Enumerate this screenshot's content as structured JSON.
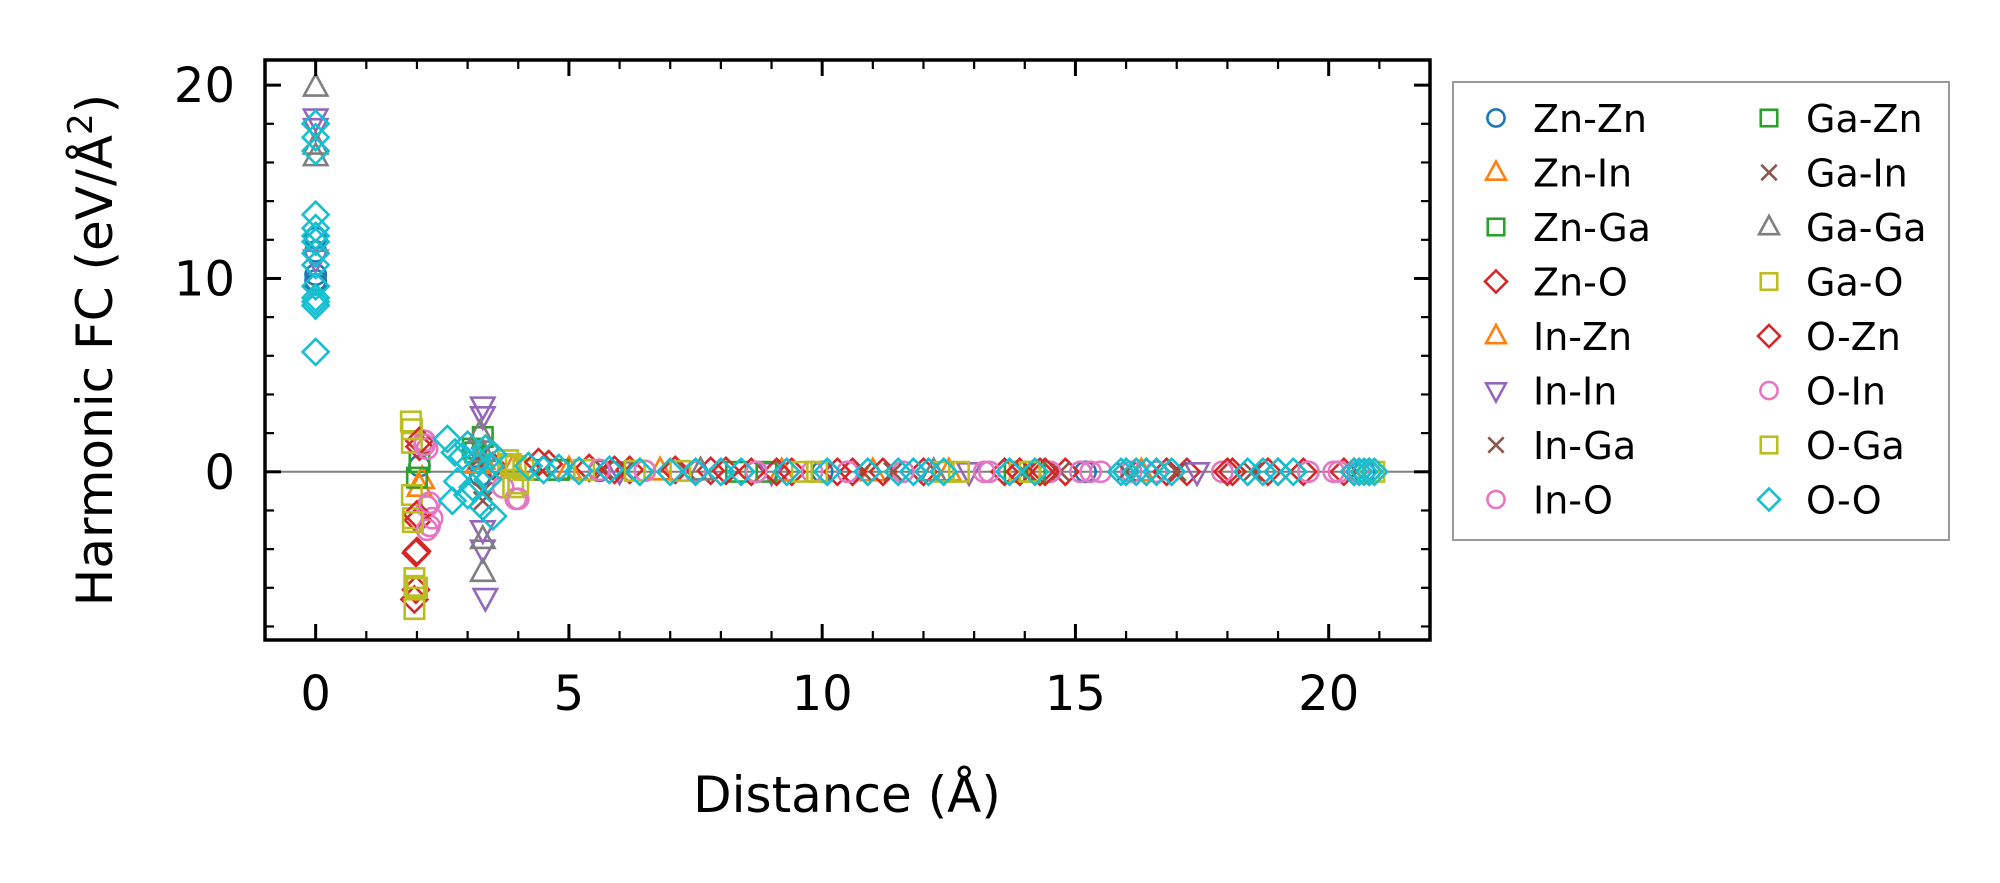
{
  "chart_data": {
    "type": "scatter",
    "title": "",
    "xlabel": "Distance (Å)",
    "ylabel": "Harmonic FC (eV/Å²)",
    "ylabel_base": "Harmonic FC (eV/Å",
    "ylabel_sup": "2",
    "ylabel_close": ")",
    "xlim": [
      -1,
      22
    ],
    "ylim": [
      -8.7,
      21.3
    ],
    "xticks": [
      0,
      5,
      10,
      15,
      20
    ],
    "yticks": [
      0,
      10,
      20
    ],
    "xtick_labels": [
      "0",
      "5",
      "10",
      "15",
      "20"
    ],
    "ytick_labels": [
      "0",
      "10",
      "20"
    ],
    "grid": false,
    "zero_line": true,
    "legend": "outside-right",
    "series": [
      {
        "name": "Zn-Zn",
        "marker": "circle",
        "color": "#1f77b4",
        "x": [
          0,
          0,
          0,
          0,
          0,
          2.05,
          3.25,
          5.6,
          10.0,
          15.2,
          20.7
        ],
        "y": [
          9.7,
          10.2,
          9.9,
          12.1,
          11.4,
          0.3,
          -0.2,
          0.05,
          0.0,
          0.0,
          0.0
        ]
      },
      {
        "name": "Zn-In",
        "marker": "triangle-up",
        "color": "#ff7f0e",
        "x": [
          2.05,
          3.3,
          3.9,
          6.8,
          11.0,
          16.3
        ],
        "y": [
          -0.8,
          0.6,
          0.2,
          0.05,
          0.0,
          0.0
        ]
      },
      {
        "name": "Zn-Ga",
        "marker": "square",
        "color": "#2ca02c",
        "x": [
          2.05,
          3.1,
          3.3,
          4.2,
          8.3,
          13.8
        ],
        "y": [
          0.5,
          1.2,
          1.8,
          0.1,
          0.0,
          0.0
        ]
      },
      {
        "name": "Zn-O",
        "marker": "diamond",
        "color": "#d62728",
        "x": [
          1.95,
          1.98,
          2.0,
          2.02,
          2.05,
          3.5,
          4.6,
          5.4,
          6.2,
          7.1,
          7.8,
          8.6,
          9.4,
          10.3,
          11.2,
          12.0,
          13.6,
          14.3,
          14.8,
          16.8,
          17.2,
          18.1,
          18.8,
          19.5,
          20.3,
          20.8
        ],
        "y": [
          -6.6,
          -6.1,
          -4.1,
          -2.5,
          1.3,
          0.3,
          0.4,
          0.2,
          0.1,
          0.1,
          0.05,
          0.0,
          0.0,
          0.0,
          0.0,
          0.0,
          0.0,
          0.0,
          0.0,
          0.0,
          0.0,
          0.0,
          0.0,
          0.0,
          0.0,
          0.0
        ]
      },
      {
        "name": "In-Zn",
        "marker": "triangle-up",
        "color": "#ff7f0e",
        "x": [
          2.1,
          3.2,
          5.0,
          9.2,
          12.5
        ],
        "y": [
          -0.4,
          0.4,
          0.1,
          0.0,
          0.0
        ]
      },
      {
        "name": "In-In",
        "marker": "triangle-down",
        "color": "#9467bd",
        "x": [
          0,
          0,
          0,
          3.3,
          3.3,
          3.3,
          3.3,
          3.35,
          6.0,
          9.0,
          12.9,
          17.4
        ],
        "y": [
          17.8,
          18.3,
          11.0,
          3.4,
          2.9,
          -3.0,
          -4.0,
          -6.5,
          0.05,
          0.0,
          0.0,
          0.0
        ]
      },
      {
        "name": "In-Ga",
        "marker": "x",
        "color": "#8c564b",
        "x": [
          3.25,
          3.3,
          5.7,
          7.3,
          10.8,
          14.0,
          14.7,
          17.0,
          18.5
        ],
        "y": [
          0.8,
          -1.0,
          0.1,
          0.1,
          0.0,
          0.0,
          0.0,
          0.0,
          0.0
        ]
      },
      {
        "name": "In-O",
        "marker": "circle",
        "color": "#e377c2",
        "x": [
          2.15,
          2.2,
          2.2,
          2.25,
          2.3,
          3.7,
          3.95,
          6.5,
          7.5,
          9.8,
          11.6,
          13.2,
          14.5,
          15.1,
          15.5,
          16.1,
          16.6,
          17.9,
          19.6,
          20.1,
          20.6
        ],
        "y": [
          1.6,
          1.2,
          -1.8,
          -2.8,
          -2.4,
          -0.8,
          -1.4,
          0.05,
          0.0,
          0.0,
          0.0,
          0.0,
          0.0,
          0.0,
          0.0,
          0.0,
          0.0,
          0.0,
          0.0,
          0.0,
          0.0
        ]
      },
      {
        "name": "Ga-Zn",
        "marker": "square",
        "color": "#2ca02c",
        "x": [
          2.0,
          3.15,
          4.8,
          8.9,
          14.2
        ],
        "y": [
          -0.3,
          1.0,
          0.1,
          0.0,
          0.0
        ]
      },
      {
        "name": "Ga-In",
        "marker": "x",
        "color": "#8c564b",
        "x": [
          3.2,
          3.3,
          6.1,
          11.4,
          16.0
        ],
        "y": [
          0.6,
          -1.5,
          0.05,
          0.0,
          0.0
        ]
      },
      {
        "name": "Ga-Ga",
        "marker": "triangle-up",
        "color": "#7f7f7f",
        "x": [
          0,
          0,
          0,
          3.25,
          3.3,
          3.3,
          3.3,
          7.6,
          12.2
        ],
        "y": [
          19.9,
          16.3,
          16.9,
          2.0,
          1.0,
          -3.5,
          -5.2,
          0.05,
          0.0
        ]
      },
      {
        "name": "Ga-O",
        "marker": "square",
        "color": "#bcbd22",
        "x": [
          1.88,
          1.9,
          1.9,
          1.92,
          1.95,
          1.95,
          2.0,
          3.8,
          3.9,
          3.95,
          4.1,
          5.3,
          7.2,
          9.6,
          12.4,
          13.9,
          20.8
        ],
        "y": [
          2.6,
          1.5,
          -1.2,
          -2.4,
          -5.9,
          -7.1,
          -6.0,
          0.6,
          -0.8,
          0.3,
          0.1,
          0.1,
          0.05,
          0.0,
          0.0,
          0.0,
          0.0
        ]
      },
      {
        "name": "O-Zn",
        "marker": "diamond",
        "color": "#d62728",
        "x": [
          1.98,
          2.0,
          2.05,
          4.4,
          5.9,
          8.1,
          9.1,
          10.6,
          13.9,
          14.4,
          16.4,
          18.0,
          19.0,
          20.5
        ],
        "y": [
          -4.2,
          -2.2,
          1.6,
          0.5,
          0.1,
          0.05,
          0.0,
          0.0,
          0.0,
          0.0,
          0.0,
          0.0,
          0.0,
          0.0
        ]
      },
      {
        "name": "O-In",
        "marker": "circle",
        "color": "#e377c2",
        "x": [
          2.15,
          2.2,
          2.25,
          4.0,
          5.6,
          8.7,
          10.5,
          13.3,
          15.3,
          20.2
        ],
        "y": [
          1.4,
          -3.0,
          -1.6,
          -1.4,
          0.1,
          0.0,
          0.0,
          0.0,
          0.0,
          0.0
        ]
      },
      {
        "name": "O-Ga",
        "marker": "square",
        "color": "#bcbd22",
        "x": [
          1.9,
          1.92,
          1.95,
          3.85,
          4.0,
          6.3,
          9.9,
          12.7,
          14.1,
          20.9
        ],
        "y": [
          2.2,
          -2.6,
          -5.5,
          0.4,
          -0.6,
          0.05,
          0.0,
          0.0,
          0.0,
          0.0
        ]
      },
      {
        "name": "O-O",
        "marker": "diamond",
        "color": "#17becf",
        "x": [
          0,
          0,
          0,
          0,
          0,
          0,
          0,
          0,
          0,
          0,
          0,
          0,
          0,
          0,
          2.6,
          2.7,
          2.75,
          2.8,
          2.9,
          3.0,
          3.0,
          3.1,
          3.2,
          3.3,
          3.35,
          3.4,
          3.45,
          3.5,
          3.5,
          4.2,
          4.5,
          4.8,
          5.2,
          5.8,
          6.4,
          7.0,
          7.5,
          8.0,
          8.4,
          9.3,
          10.1,
          10.9,
          11.5,
          11.8,
          12.1,
          12.4,
          13.7,
          14.2,
          15.9,
          16.0,
          16.2,
          16.4,
          16.6,
          16.9,
          18.4,
          18.7,
          19.0,
          19.3,
          20.5,
          20.6,
          20.7,
          20.8,
          20.9
        ],
        "y": [
          18.0,
          17.3,
          16.6,
          13.3,
          12.6,
          12.2,
          11.9,
          11.3,
          10.7,
          9.6,
          9.0,
          8.8,
          8.6,
          6.2,
          1.7,
          -1.5,
          1.0,
          -0.5,
          0.8,
          -1.2,
          1.4,
          -0.8,
          0.6,
          -1.8,
          1.2,
          -0.4,
          0.3,
          -2.3,
          0.9,
          0.3,
          0.1,
          0.2,
          0.05,
          0.1,
          0.0,
          0.0,
          0.0,
          0.0,
          0.0,
          0.0,
          0.0,
          0.0,
          0.0,
          0.0,
          0.0,
          0.0,
          0.0,
          0.0,
          0.0,
          0.0,
          0.0,
          0.0,
          0.0,
          0.0,
          0.0,
          0.0,
          0.0,
          0.0,
          0.0,
          0.0,
          0.0,
          0.0,
          0.0
        ]
      }
    ]
  }
}
